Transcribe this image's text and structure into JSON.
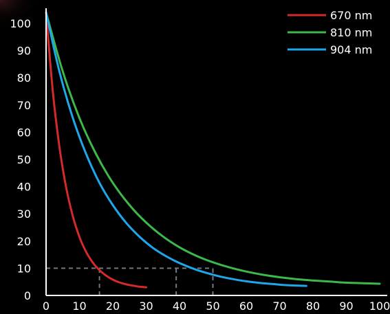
{
  "chart_data": {
    "type": "line",
    "title": "",
    "xlabel": "",
    "ylabel": "",
    "xlim": [
      0,
      100
    ],
    "ylim": [
      0,
      100
    ],
    "x_ticks": [
      0,
      10,
      20,
      30,
      40,
      50,
      60,
      70,
      80,
      90,
      100
    ],
    "y_ticks": [
      0,
      10,
      20,
      30,
      40,
      50,
      60,
      70,
      80,
      90,
      100
    ],
    "grid": false,
    "legend_position": "top-right",
    "series": [
      {
        "name": "670 nm",
        "color": "#d42a2a",
        "x": [
          0,
          2,
          4,
          6,
          8,
          10,
          12,
          14,
          16,
          18,
          20,
          22,
          24,
          26,
          28,
          30
        ],
        "y": [
          104,
          75.2,
          54.6,
          39.8,
          29.2,
          21.5,
          16.0,
          12.1,
          9.3,
          7.3,
          5.8,
          4.8,
          4.1,
          3.6,
          3.2,
          3.0
        ]
      },
      {
        "name": "810 nm",
        "color": "#3db84a",
        "x": [
          0,
          5,
          10,
          15,
          20,
          25,
          30,
          35,
          40,
          45,
          50,
          55,
          60,
          65,
          70,
          75,
          80,
          85,
          90,
          95,
          100
        ],
        "y": [
          104,
          82.3,
          65.2,
          51.9,
          41.4,
          33.2,
          26.8,
          21.7,
          17.7,
          14.6,
          12.2,
          10.3,
          8.8,
          7.6,
          6.7,
          6.0,
          5.5,
          5.1,
          4.7,
          4.5,
          4.3
        ]
      },
      {
        "name": "904 nm",
        "color": "#1ea8ec",
        "x": [
          0,
          4,
          8,
          12,
          16,
          20,
          24,
          28,
          32,
          36,
          40,
          44,
          48,
          52,
          56,
          60,
          64,
          68,
          72,
          76,
          78
        ],
        "y": [
          104,
          82.3,
          65.3,
          52.0,
          41.4,
          33.2,
          26.7,
          21.6,
          17.5,
          14.4,
          11.9,
          9.9,
          8.3,
          7.0,
          6.0,
          5.2,
          4.6,
          4.2,
          3.8,
          3.6,
          3.5
        ]
      }
    ],
    "reference_lines": [
      {
        "type": "horizontal",
        "y": 10,
        "x_from": 0,
        "x_to": 50
      },
      {
        "type": "vertical",
        "x": 0,
        "y_from": 0,
        "y_to": 100
      },
      {
        "type": "vertical",
        "x": 16,
        "y_from": 0,
        "y_to": 10
      },
      {
        "type": "vertical",
        "x": 39,
        "y_from": 0,
        "y_to": 10
      },
      {
        "type": "vertical",
        "x": 50,
        "y_from": 0,
        "y_to": 10
      }
    ],
    "colors": {
      "background": "#000000",
      "axis": "#ffffff",
      "text": "#ffffff",
      "reference_line": "#6e7a84"
    }
  }
}
